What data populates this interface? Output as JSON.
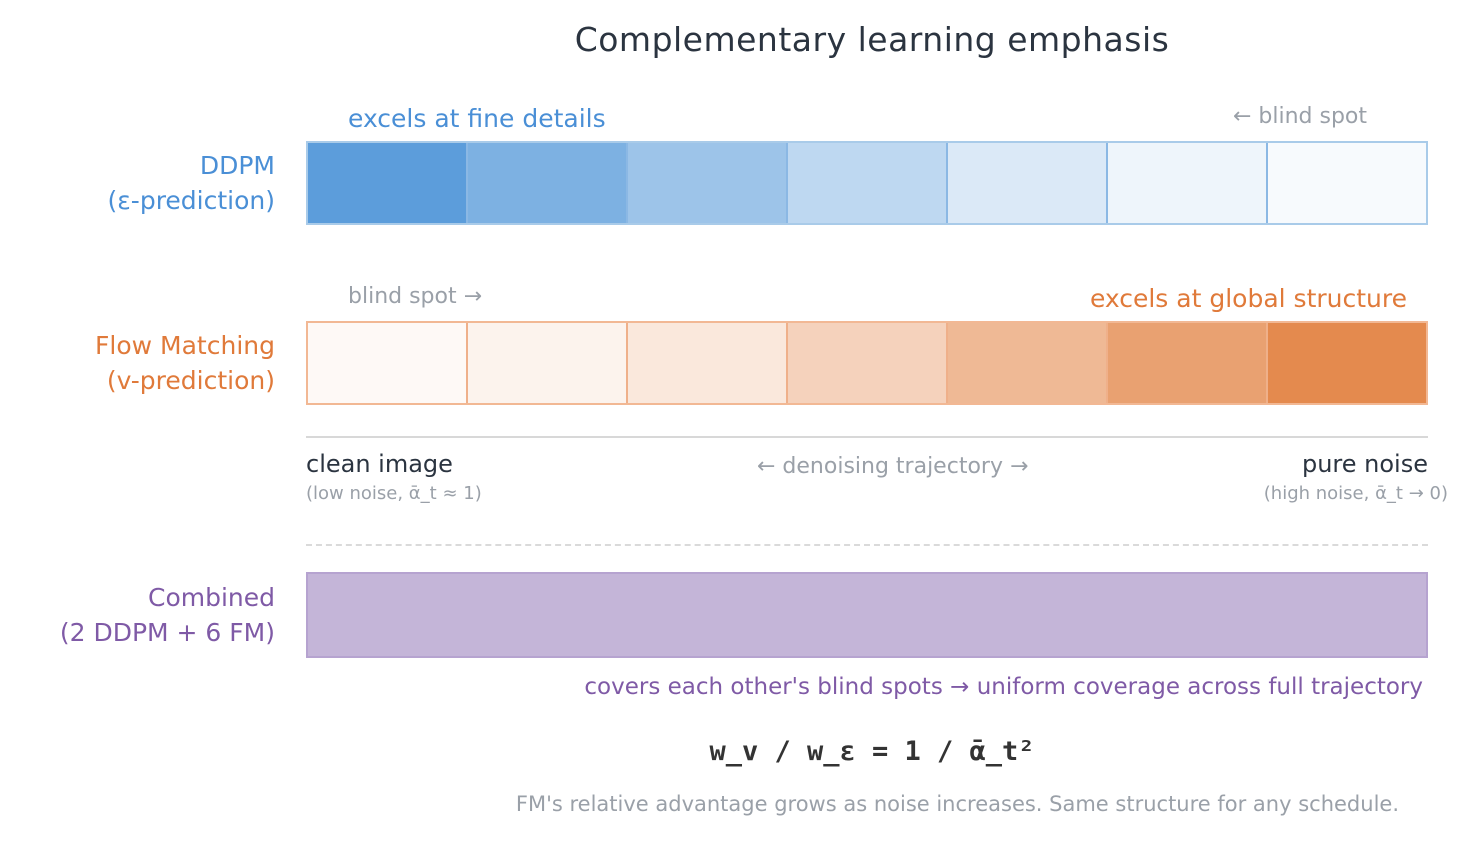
{
  "title": "Complementary learning emphasis",
  "ddpm": {
    "label_line1": "DDPM",
    "label_line2": "(ε-prediction)",
    "strength_label": "excels at fine details",
    "blind_label": "← blind spot",
    "intensity": [
      1.0,
      0.8,
      0.6,
      0.4,
      0.22,
      0.1,
      0.05
    ],
    "color_rgb": [
      92,
      157,
      219
    ]
  },
  "fm": {
    "label_line1": "Flow Matching",
    "label_line2": "(v-prediction)",
    "strength_label": "excels at global structure",
    "blind_label": "blind spot →",
    "intensity": [
      0.05,
      0.1,
      0.2,
      0.38,
      0.6,
      0.8,
      1.0
    ],
    "color_rgb": [
      228,
      138,
      78
    ]
  },
  "axis": {
    "left_title": "clean image",
    "left_sub": "(low noise, ᾱ_t ≈ 1)",
    "center": "← denoising trajectory →",
    "right_title": "pure noise",
    "right_sub": "(high noise, ᾱ_t → 0)"
  },
  "combined": {
    "label_line1": "Combined",
    "label_line2": "(2 DDPM + 6 FM)",
    "caption": "covers each other's blind spots → uniform coverage across full trajectory"
  },
  "formula": "w_v / w_ε = 1 / ᾱ_t²",
  "footer": "FM's relative advantage grows as noise increases. Same structure for any schedule.",
  "colors": {
    "ddpm": "#4a8fd6",
    "fm": "#e07a3a",
    "combined": "#7f5aa6",
    "combined_fill": "#c4b5d8"
  }
}
